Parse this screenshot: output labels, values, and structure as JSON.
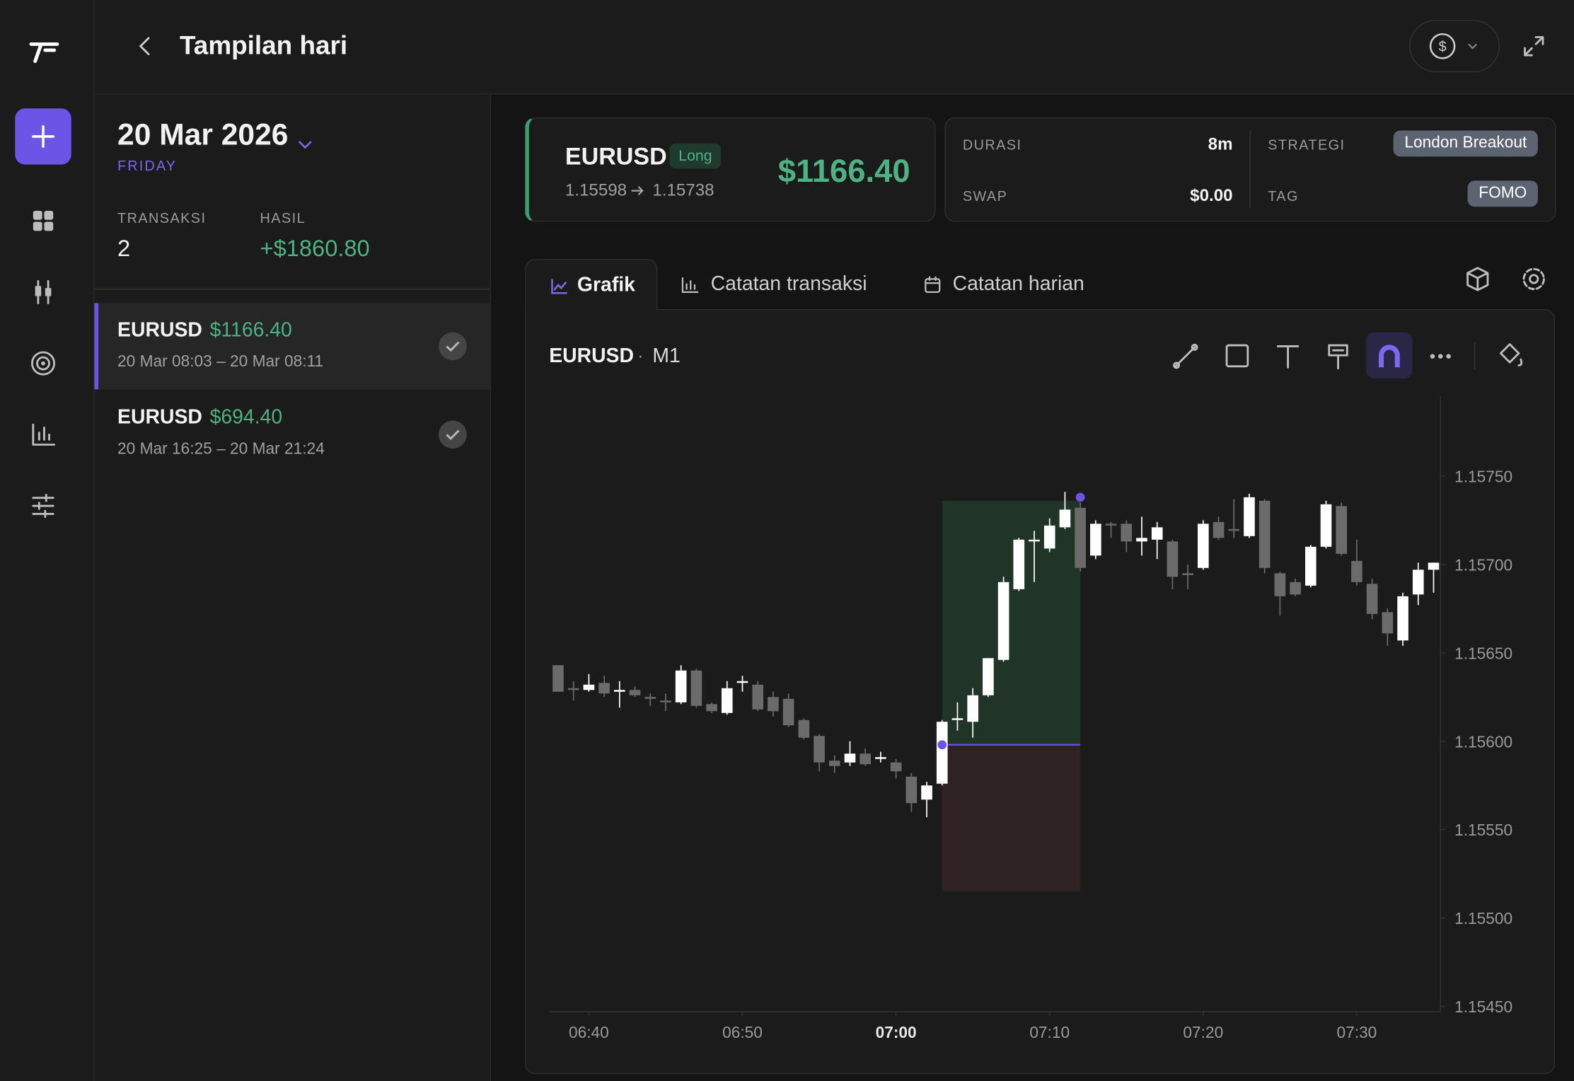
{
  "header": {
    "title": "Tampilan hari"
  },
  "day": {
    "date": "20 Mar 2026",
    "weekday": "FRIDAY",
    "stats": [
      {
        "label": "TRANSAKSI",
        "value": "2"
      },
      {
        "label": "HASIL",
        "value": "+$1860.80"
      }
    ]
  },
  "trades": [
    {
      "symbol": "EURUSD",
      "pnl": "$1166.40",
      "time": "20 Mar 08:03 – 20 Mar 08:11"
    },
    {
      "symbol": "EURUSD",
      "pnl": "$694.40",
      "time": "20 Mar 16:25 – 20 Mar 21:24"
    }
  ],
  "trade_card": {
    "symbol": "EURUSD",
    "side": "Long",
    "entry": 1.15598,
    "exit": 1.15738,
    "pnl": "$1166.40"
  },
  "details": [
    {
      "label": "DURASI",
      "value": "8m"
    },
    {
      "label": "SWAP",
      "value": "$0.00"
    },
    {
      "label": "STRATEGI",
      "value": "London Breakout"
    },
    {
      "label": "TAG",
      "value": "FOMO"
    }
  ],
  "tabs": [
    "Grafik",
    "Catatan transaksi",
    "Catatan harian"
  ],
  "chart_data": {
    "type": "candlestick",
    "title": "EURUSD",
    "timeframe": "M1",
    "up_color": "#ffffff",
    "down_color": "#6b6b6b",
    "x": [
      "06:38",
      "06:39",
      "06:40",
      "06:41",
      "06:42",
      "06:43",
      "06:44",
      "06:45",
      "06:46",
      "06:47",
      "06:48",
      "06:49",
      "06:50",
      "06:51",
      "06:52",
      "06:53",
      "06:54",
      "06:55",
      "06:56",
      "06:57",
      "06:58",
      "06:59",
      "07:00",
      "07:01",
      "07:02",
      "07:03",
      "07:04",
      "07:05",
      "07:06",
      "07:07",
      "07:08",
      "07:09",
      "07:10",
      "07:11",
      "07:12",
      "07:13",
      "07:14",
      "07:15",
      "07:16",
      "07:17",
      "07:18",
      "07:19",
      "07:20",
      "07:21",
      "07:22",
      "07:23",
      "07:24",
      "07:25",
      "07:26",
      "07:27",
      "07:28",
      "07:29",
      "07:30",
      "07:31",
      "07:32",
      "07:33",
      "07:34",
      "07:35"
    ],
    "open": [
      1.15643,
      1.1563,
      1.15629,
      1.15633,
      1.15628,
      1.15629,
      1.15625,
      1.15623,
      1.15622,
      1.1564,
      1.15621,
      1.15616,
      1.15633,
      1.15632,
      1.15625,
      1.15624,
      1.15612,
      1.15603,
      1.15589,
      1.15588,
      1.15593,
      1.1559,
      1.15588,
      1.1558,
      1.15567,
      1.15576,
      1.15612,
      1.15611,
      1.15626,
      1.15646,
      1.15686,
      1.15713,
      1.15709,
      1.15721,
      1.15732,
      1.15705,
      1.15723,
      1.15723,
      1.15713,
      1.15714,
      1.15713,
      1.15695,
      1.15698,
      1.15724,
      1.1572,
      1.15716,
      1.15736,
      1.15695,
      1.1569,
      1.15688,
      1.1571,
      1.15733,
      1.15702,
      1.15689,
      1.15673,
      1.15657,
      1.15683,
      1.15697
    ],
    "high": [
      1.15643,
      1.15634,
      1.15638,
      1.15637,
      1.15634,
      1.15631,
      1.15627,
      1.15627,
      1.15643,
      1.15641,
      1.15622,
      1.15634,
      1.15637,
      1.15634,
      1.15628,
      1.15627,
      1.15613,
      1.15604,
      1.15592,
      1.156,
      1.15596,
      1.15594,
      1.1559,
      1.15582,
      1.15577,
      1.15612,
      1.15622,
      1.1563,
      1.15647,
      1.15693,
      1.15715,
      1.15719,
      1.15726,
      1.15741,
      1.15735,
      1.15725,
      1.15724,
      1.15725,
      1.15727,
      1.15724,
      1.15714,
      1.157,
      1.15725,
      1.15727,
      1.15737,
      1.1574,
      1.15737,
      1.15696,
      1.15692,
      1.15711,
      1.15736,
      1.15735,
      1.15714,
      1.15692,
      1.15675,
      1.15684,
      1.15701,
      1.15701
    ],
    "low": [
      1.15628,
      1.15623,
      1.15628,
      1.15625,
      1.15619,
      1.15625,
      1.1562,
      1.15617,
      1.15621,
      1.15619,
      1.15616,
      1.15615,
      1.15628,
      1.15617,
      1.15614,
      1.15608,
      1.15601,
      1.15583,
      1.15582,
      1.15586,
      1.15586,
      1.15588,
      1.15579,
      1.1556,
      1.15557,
      1.15575,
      1.15606,
      1.15602,
      1.15625,
      1.15645,
      1.15685,
      1.1569,
      1.15707,
      1.1572,
      1.15696,
      1.15703,
      1.15715,
      1.15707,
      1.15705,
      1.15703,
      1.15686,
      1.15686,
      1.15697,
      1.15714,
      1.15715,
      1.15715,
      1.15695,
      1.15671,
      1.15682,
      1.15687,
      1.15709,
      1.15705,
      1.15688,
      1.15669,
      1.15654,
      1.15654,
      1.15677,
      1.15684
    ],
    "close": [
      1.15628,
      1.15629,
      1.15632,
      1.15627,
      1.15629,
      1.15626,
      1.15624,
      1.15622,
      1.1564,
      1.1562,
      1.15617,
      1.1563,
      1.15634,
      1.15618,
      1.15617,
      1.15609,
      1.15602,
      1.15588,
      1.15586,
      1.15593,
      1.15587,
      1.15591,
      1.15583,
      1.15565,
      1.15575,
      1.15611,
      1.15613,
      1.15626,
      1.15647,
      1.1569,
      1.15714,
      1.15714,
      1.15722,
      1.15731,
      1.15698,
      1.15723,
      1.15722,
      1.15713,
      1.15715,
      1.15721,
      1.15693,
      1.15694,
      1.15723,
      1.15715,
      1.15719,
      1.15738,
      1.15698,
      1.15682,
      1.15683,
      1.1571,
      1.15734,
      1.15706,
      1.1569,
      1.15672,
      1.15661,
      1.15682,
      1.15697,
      1.15701
    ],
    "trade_span": [
      "07:03",
      "07:12"
    ],
    "take_profit": 1.15736,
    "stop_loss": 1.15515,
    "ylim": [
      1.15447,
      1.15795
    ],
    "yticks": [
      {
        "value": 1.1545,
        "label": "1.15450"
      },
      {
        "value": 1.155,
        "label": "1.15500"
      },
      {
        "value": 1.1555,
        "label": "1.15550"
      },
      {
        "value": 1.156,
        "label": "1.15600"
      },
      {
        "value": 1.1565,
        "label": "1.15650"
      },
      {
        "value": 1.157,
        "label": "1.15700"
      },
      {
        "value": 1.1575,
        "label": "1.15750"
      }
    ],
    "xticks": [
      "06:40",
      "06:50",
      "07:00",
      "07:10",
      "07:20",
      "07:30"
    ]
  }
}
